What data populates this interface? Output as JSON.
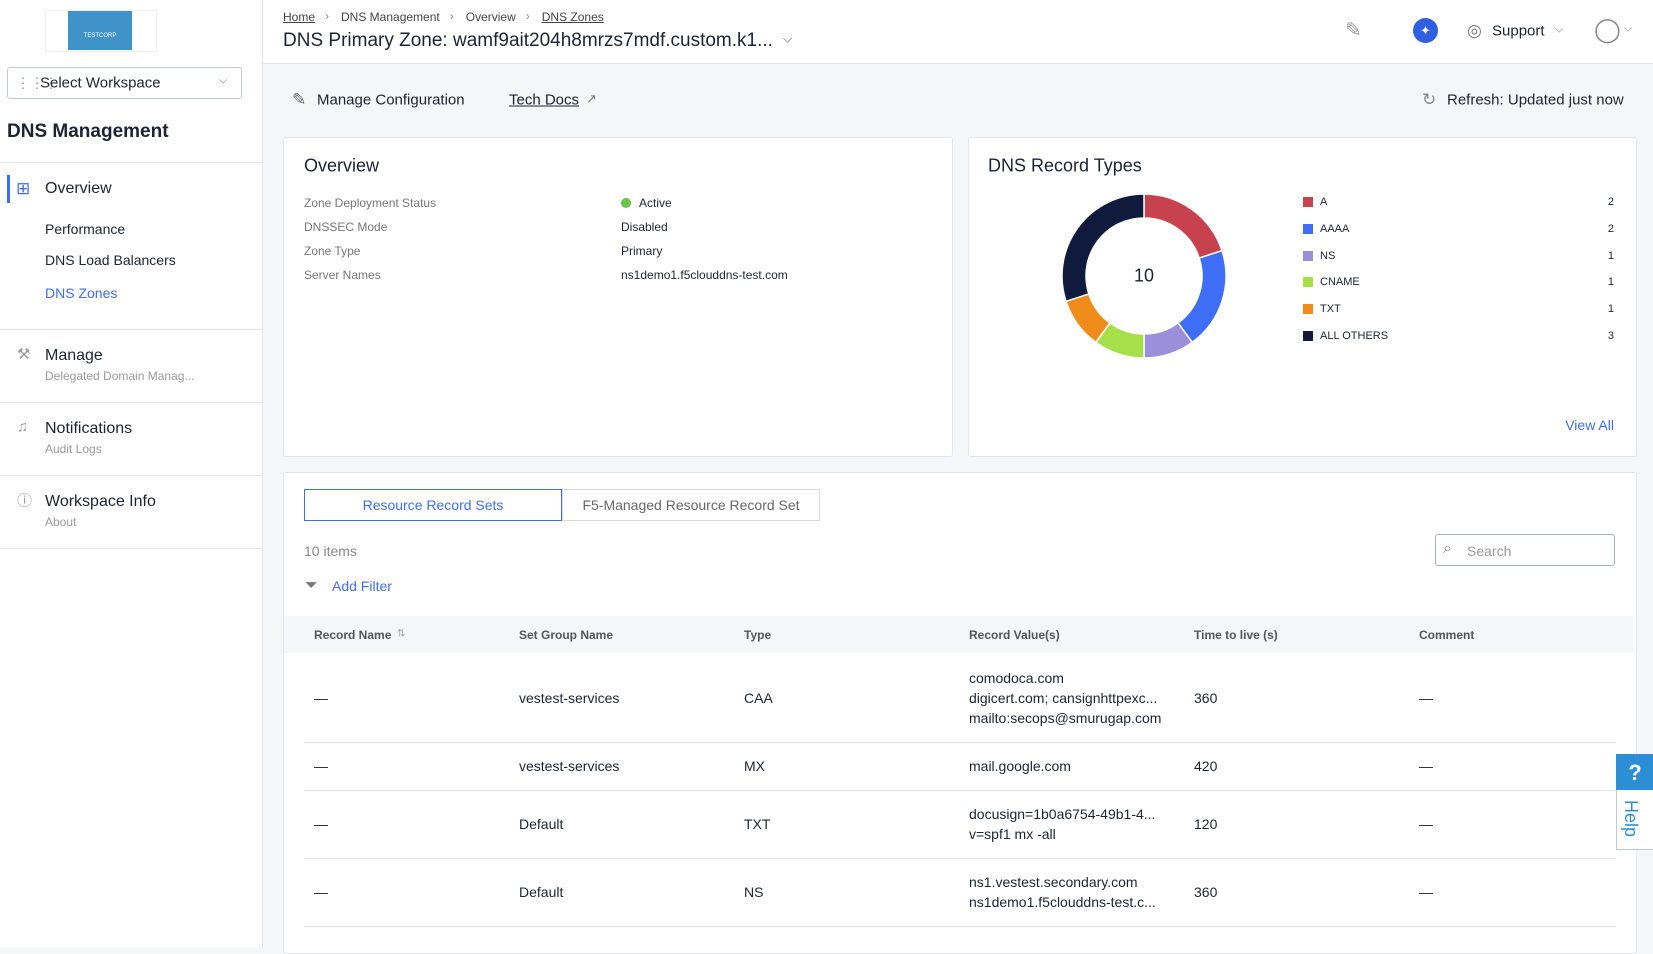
{
  "sidebar": {
    "logo": "TESTCORP",
    "workspace_select": "Select Workspace",
    "section_title": "DNS Management",
    "overview": {
      "label": "Overview",
      "items": [
        "Performance",
        "DNS Load Balancers",
        "DNS Zones"
      ]
    },
    "groups": [
      {
        "label": "Manage",
        "sub": "Delegated Domain Manag..."
      },
      {
        "label": "Notifications",
        "sub": "Audit Logs"
      },
      {
        "label": "Workspace Info",
        "sub": "About"
      }
    ]
  },
  "header": {
    "breadcrumbs": [
      "Home",
      "DNS Management",
      "Overview",
      "DNS Zones"
    ],
    "title": "DNS Primary Zone: wamf9ait204h8mrzs7mdf.custom.k1...",
    "support": "Support"
  },
  "toolbar": {
    "manage": "Manage Configuration",
    "tech_docs": "Tech Docs",
    "refresh": "Refresh: Updated just now"
  },
  "overview": {
    "title": "Overview",
    "fields": [
      [
        "Zone Deployment Status",
        "Active"
      ],
      [
        "DNSSEC Mode",
        "Disabled"
      ],
      [
        "Zone Type",
        "Primary"
      ],
      [
        "Server Names",
        "ns1demo1.f5clouddns-test.com"
      ]
    ]
  },
  "record_types": {
    "title": "DNS Record Types",
    "total": 10,
    "view_all": "View All",
    "items": [
      {
        "name": "A",
        "value": 2,
        "color": "#c8414f"
      },
      {
        "name": "AAAA",
        "value": 2,
        "color": "#3d6ef5"
      },
      {
        "name": "NS",
        "value": 1,
        "color": "#9b8fd9"
      },
      {
        "name": "CNAME",
        "value": 1,
        "color": "#a5e04b"
      },
      {
        "name": "TXT",
        "value": 1,
        "color": "#f08c1a"
      },
      {
        "name": "ALL OTHERS",
        "value": 3,
        "color": "#0f1a3c"
      }
    ]
  },
  "table": {
    "tabs": [
      "Resource Record Sets",
      "F5-Managed Resource Record Set"
    ],
    "item_count": "10 items",
    "add_filter": "Add Filter",
    "search": "Search",
    "columns": [
      "Record Name",
      "Set Group Name",
      "Type",
      "Record Value(s)",
      "Time to live (s)",
      "Comment"
    ],
    "rows": [
      [
        "—",
        "vestest-services",
        "CAA",
        [
          "comodoca.com",
          "digicert.com; cansignhttpexc...",
          "mailto:secops@smurugap.com"
        ],
        360,
        "—"
      ],
      [
        "—",
        "vestest-services",
        "MX",
        [
          "mail.google.com"
        ],
        420,
        "—"
      ],
      [
        "—",
        "Default",
        "TXT",
        [
          "docusign=1b0a6754-49b1-4...",
          "v=spf1 mx -all"
        ],
        120,
        "—"
      ],
      [
        "—",
        "Default",
        "NS",
        [
          "ns1.vestest.secondary.com",
          "ns1demo1.f5clouddns-test.c..."
        ],
        360,
        "—"
      ]
    ]
  },
  "help": {
    "icon": "?",
    "label": "Help"
  }
}
